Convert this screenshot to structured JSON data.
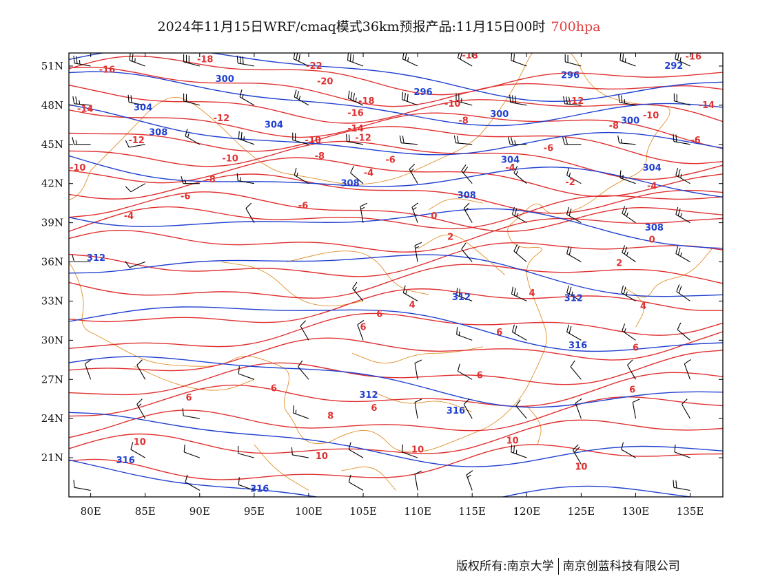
{
  "title": {
    "main": "2024年11月15日WRF/cmaq模式36km预报产品:11月15日00时",
    "level": "700hpa",
    "level_color": "#e04040"
  },
  "map": {
    "lon_range": [
      78,
      138
    ],
    "lat_range": [
      18,
      52
    ],
    "lon_ticks": [
      "80E",
      "85E",
      "90E",
      "95E",
      "100E",
      "105E",
      "110E",
      "115E",
      "120E",
      "125E",
      "130E",
      "135E"
    ],
    "lat_ticks": [
      "51N",
      "48N",
      "45N",
      "42N",
      "39N",
      "36N",
      "33N",
      "30N",
      "27N",
      "24N",
      "21N"
    ],
    "temperature_color": "#e03030",
    "height_color": "#2040d0",
    "boundary_color": "#e0902a",
    "wind_barb_color": "#000000",
    "temperature_labels": [
      {
        "text": "-16",
        "lon": 81.5,
        "lat": 50.7
      },
      {
        "text": "-18",
        "lon": 90.5,
        "lat": 51.5
      },
      {
        "text": "-22",
        "lon": 100.5,
        "lat": 51.0
      },
      {
        "text": "-20",
        "lon": 101.5,
        "lat": 49.8
      },
      {
        "text": "-18",
        "lon": 105.3,
        "lat": 48.3
      },
      {
        "text": "-16",
        "lon": 104.3,
        "lat": 47.4
      },
      {
        "text": "-14",
        "lon": 104.3,
        "lat": 46.2
      },
      {
        "text": "-12",
        "lon": 105.0,
        "lat": 45.5
      },
      {
        "text": "-18",
        "lon": 114.8,
        "lat": 51.8
      },
      {
        "text": "-16",
        "lon": 135.3,
        "lat": 51.7
      },
      {
        "text": "-14",
        "lon": 79.5,
        "lat": 47.7
      },
      {
        "text": "-12",
        "lon": 84.2,
        "lat": 45.3
      },
      {
        "text": "-12",
        "lon": 92.0,
        "lat": 47.0
      },
      {
        "text": "-10",
        "lon": 78.8,
        "lat": 43.2
      },
      {
        "text": "-10",
        "lon": 100.4,
        "lat": 45.3
      },
      {
        "text": "-10",
        "lon": 92.8,
        "lat": 43.9
      },
      {
        "text": "-14",
        "lon": 136.5,
        "lat": 48.0
      },
      {
        "text": "-12",
        "lon": 124.5,
        "lat": 48.3
      },
      {
        "text": "-10",
        "lon": 113.2,
        "lat": 48.1
      },
      {
        "text": "-10",
        "lon": 131.4,
        "lat": 47.2
      },
      {
        "text": "-8",
        "lon": 114.2,
        "lat": 46.8
      },
      {
        "text": "-8",
        "lon": 128.0,
        "lat": 46.4
      },
      {
        "text": "-8",
        "lon": 101.0,
        "lat": 44.1
      },
      {
        "text": "-6",
        "lon": 107.5,
        "lat": 43.8
      },
      {
        "text": "-6",
        "lon": 122.0,
        "lat": 44.7
      },
      {
        "text": "-6",
        "lon": 135.5,
        "lat": 45.3
      },
      {
        "text": "-8",
        "lon": 91.0,
        "lat": 42.3
      },
      {
        "text": "-6",
        "lon": 88.7,
        "lat": 41.0
      },
      {
        "text": "-6",
        "lon": 99.5,
        "lat": 40.3
      },
      {
        "text": "-4",
        "lon": 83.5,
        "lat": 39.5
      },
      {
        "text": "-4",
        "lon": 105.5,
        "lat": 42.8
      },
      {
        "text": "-4",
        "lon": 118.5,
        "lat": 43.2
      },
      {
        "text": "-2",
        "lon": 124.0,
        "lat": 42.1
      },
      {
        "text": "-4",
        "lon": 131.5,
        "lat": 41.8
      },
      {
        "text": "0",
        "lon": 111.5,
        "lat": 39.5
      },
      {
        "text": "2",
        "lon": 113.0,
        "lat": 37.9
      },
      {
        "text": "0",
        "lon": 131.5,
        "lat": 37.7
      },
      {
        "text": "2",
        "lon": 128.5,
        "lat": 35.9
      },
      {
        "text": "4",
        "lon": 109.5,
        "lat": 32.7
      },
      {
        "text": "4",
        "lon": 120.5,
        "lat": 33.6
      },
      {
        "text": "4",
        "lon": 130.7,
        "lat": 32.6
      },
      {
        "text": "6",
        "lon": 106.5,
        "lat": 32.0
      },
      {
        "text": "6",
        "lon": 105.0,
        "lat": 31.0
      },
      {
        "text": "6",
        "lon": 117.5,
        "lat": 30.6
      },
      {
        "text": "6",
        "lon": 130.0,
        "lat": 29.4
      },
      {
        "text": "6",
        "lon": 115.7,
        "lat": 27.3
      },
      {
        "text": "6",
        "lon": 89.0,
        "lat": 25.6
      },
      {
        "text": "6",
        "lon": 96.8,
        "lat": 26.3
      },
      {
        "text": "6",
        "lon": 106.0,
        "lat": 24.8
      },
      {
        "text": "8",
        "lon": 102.0,
        "lat": 24.2
      },
      {
        "text": "10",
        "lon": 84.5,
        "lat": 22.2
      },
      {
        "text": "10",
        "lon": 101.2,
        "lat": 21.1
      },
      {
        "text": "10",
        "lon": 110.0,
        "lat": 21.6
      },
      {
        "text": "10",
        "lon": 118.7,
        "lat": 22.3
      },
      {
        "text": "10",
        "lon": 125.0,
        "lat": 20.3
      },
      {
        "text": "6",
        "lon": 129.7,
        "lat": 26.2
      }
    ],
    "height_labels": [
      {
        "text": "304",
        "lon": 84.8,
        "lat": 47.8
      },
      {
        "text": "300",
        "lon": 92.3,
        "lat": 50.0
      },
      {
        "text": "308",
        "lon": 86.2,
        "lat": 45.9
      },
      {
        "text": "304",
        "lon": 96.8,
        "lat": 46.5
      },
      {
        "text": "296",
        "lon": 110.5,
        "lat": 49.0
      },
      {
        "text": "296",
        "lon": 124.0,
        "lat": 50.3
      },
      {
        "text": "292",
        "lon": 133.5,
        "lat": 51.0
      },
      {
        "text": "300",
        "lon": 117.5,
        "lat": 47.3
      },
      {
        "text": "300",
        "lon": 129.5,
        "lat": 46.8
      },
      {
        "text": "304",
        "lon": 118.5,
        "lat": 43.8
      },
      {
        "text": "304",
        "lon": 131.5,
        "lat": 43.2
      },
      {
        "text": "308",
        "lon": 103.8,
        "lat": 42.0
      },
      {
        "text": "308",
        "lon": 114.5,
        "lat": 41.1
      },
      {
        "text": "308",
        "lon": 131.7,
        "lat": 38.6
      },
      {
        "text": "312",
        "lon": 80.5,
        "lat": 36.3
      },
      {
        "text": "312",
        "lon": 114.0,
        "lat": 33.3
      },
      {
        "text": "312",
        "lon": 124.3,
        "lat": 33.2
      },
      {
        "text": "316",
        "lon": 124.7,
        "lat": 29.6
      },
      {
        "text": "312",
        "lon": 105.5,
        "lat": 25.8
      },
      {
        "text": "316",
        "lon": 113.5,
        "lat": 24.6
      },
      {
        "text": "316",
        "lon": 83.2,
        "lat": 20.8
      },
      {
        "text": "316",
        "lon": 95.5,
        "lat": 18.6
      }
    ],
    "wind_barbs": [
      {
        "lon": 80,
        "lat": 51,
        "dir": 280,
        "spd": 25
      },
      {
        "lon": 85,
        "lat": 51,
        "dir": 290,
        "spd": 25
      },
      {
        "lon": 90,
        "lat": 51,
        "dir": 285,
        "spd": 30
      },
      {
        "lon": 95,
        "lat": 51,
        "dir": 280,
        "spd": 30
      },
      {
        "lon": 100,
        "lat": 51,
        "dir": 295,
        "spd": 30
      },
      {
        "lon": 105,
        "lat": 51,
        "dir": 290,
        "spd": 30
      },
      {
        "lon": 110,
        "lat": 51,
        "dir": 295,
        "spd": 25
      },
      {
        "lon": 115,
        "lat": 51,
        "dir": 300,
        "spd": 20
      },
      {
        "lon": 120,
        "lat": 51,
        "dir": 290,
        "spd": 20
      },
      {
        "lon": 125,
        "lat": 51,
        "dir": 285,
        "spd": 20
      },
      {
        "lon": 130,
        "lat": 51,
        "dir": 290,
        "spd": 25
      },
      {
        "lon": 135,
        "lat": 51,
        "dir": 295,
        "spd": 25
      },
      {
        "lon": 80,
        "lat": 48,
        "dir": 275,
        "spd": 25
      },
      {
        "lon": 85,
        "lat": 48,
        "dir": 280,
        "spd": 20
      },
      {
        "lon": 90,
        "lat": 48,
        "dir": 285,
        "spd": 20
      },
      {
        "lon": 95,
        "lat": 48,
        "dir": 300,
        "spd": 15
      },
      {
        "lon": 100,
        "lat": 48,
        "dir": 300,
        "spd": 25
      },
      {
        "lon": 105,
        "lat": 48,
        "dir": 295,
        "spd": 35
      },
      {
        "lon": 110,
        "lat": 48,
        "dir": 290,
        "spd": 30
      },
      {
        "lon": 115,
        "lat": 48,
        "dir": 285,
        "spd": 25
      },
      {
        "lon": 120,
        "lat": 48,
        "dir": 280,
        "spd": 30
      },
      {
        "lon": 125,
        "lat": 48,
        "dir": 275,
        "spd": 30
      },
      {
        "lon": 130,
        "lat": 48,
        "dir": 280,
        "spd": 25
      },
      {
        "lon": 135,
        "lat": 48,
        "dir": 285,
        "spd": 20
      },
      {
        "lon": 80,
        "lat": 45,
        "dir": 270,
        "spd": 15
      },
      {
        "lon": 85,
        "lat": 45,
        "dir": 260,
        "spd": 10
      },
      {
        "lon": 90,
        "lat": 45,
        "dir": 300,
        "spd": 15
      },
      {
        "lon": 95,
        "lat": 45,
        "dir": 290,
        "spd": 25
      },
      {
        "lon": 100,
        "lat": 45,
        "dir": 285,
        "spd": 20
      },
      {
        "lon": 105,
        "lat": 45,
        "dir": 280,
        "spd": 20
      },
      {
        "lon": 110,
        "lat": 45,
        "dir": 275,
        "spd": 20
      },
      {
        "lon": 115,
        "lat": 45,
        "dir": 275,
        "spd": 20
      },
      {
        "lon": 120,
        "lat": 45,
        "dir": 270,
        "spd": 25
      },
      {
        "lon": 125,
        "lat": 45,
        "dir": 270,
        "spd": 20
      },
      {
        "lon": 130,
        "lat": 45,
        "dir": 275,
        "spd": 15
      },
      {
        "lon": 135,
        "lat": 45,
        "dir": 280,
        "spd": 20
      },
      {
        "lon": 85,
        "lat": 42,
        "dir": 240,
        "spd": 10
      },
      {
        "lon": 90,
        "lat": 42,
        "dir": 270,
        "spd": 15
      },
      {
        "lon": 95,
        "lat": 42,
        "dir": 280,
        "spd": 15
      },
      {
        "lon": 100,
        "lat": 42,
        "dir": 300,
        "spd": 15
      },
      {
        "lon": 105,
        "lat": 42,
        "dir": 310,
        "spd": 10
      },
      {
        "lon": 110,
        "lat": 42,
        "dir": 330,
        "spd": 15
      },
      {
        "lon": 115,
        "lat": 42,
        "dir": 320,
        "spd": 20
      },
      {
        "lon": 120,
        "lat": 42,
        "dir": 310,
        "spd": 15
      },
      {
        "lon": 125,
        "lat": 42,
        "dir": 300,
        "spd": 15
      },
      {
        "lon": 130,
        "lat": 42,
        "dir": 290,
        "spd": 15
      },
      {
        "lon": 135,
        "lat": 42,
        "dir": 300,
        "spd": 25
      },
      {
        "lon": 95,
        "lat": 39,
        "dir": 330,
        "spd": 10
      },
      {
        "lon": 105,
        "lat": 39,
        "dir": 350,
        "spd": 15
      },
      {
        "lon": 110,
        "lat": 39,
        "dir": 340,
        "spd": 15
      },
      {
        "lon": 115,
        "lat": 39,
        "dir": 330,
        "spd": 15
      },
      {
        "lon": 120,
        "lat": 39,
        "dir": 300,
        "spd": 25
      },
      {
        "lon": 125,
        "lat": 39,
        "dir": 300,
        "spd": 20
      },
      {
        "lon": 130,
        "lat": 39,
        "dir": 305,
        "spd": 25
      },
      {
        "lon": 135,
        "lat": 39,
        "dir": 300,
        "spd": 25
      },
      {
        "lon": 80,
        "lat": 36,
        "dir": 270,
        "spd": 10
      },
      {
        "lon": 85,
        "lat": 36,
        "dir": 250,
        "spd": 10
      },
      {
        "lon": 110,
        "lat": 36,
        "dir": 350,
        "spd": 15
      },
      {
        "lon": 115,
        "lat": 36,
        "dir": 320,
        "spd": 10
      },
      {
        "lon": 120,
        "lat": 36,
        "dir": 310,
        "spd": 20
      },
      {
        "lon": 125,
        "lat": 36,
        "dir": 300,
        "spd": 20
      },
      {
        "lon": 130,
        "lat": 36,
        "dir": 305,
        "spd": 25
      },
      {
        "lon": 135,
        "lat": 36,
        "dir": 300,
        "spd": 25
      },
      {
        "lon": 105,
        "lat": 33,
        "dir": 320,
        "spd": 15
      },
      {
        "lon": 110,
        "lat": 33,
        "dir": 300,
        "spd": 15
      },
      {
        "lon": 115,
        "lat": 33,
        "dir": 290,
        "spd": 20
      },
      {
        "lon": 120,
        "lat": 33,
        "dir": 295,
        "spd": 25
      },
      {
        "lon": 125,
        "lat": 33,
        "dir": 300,
        "spd": 25
      },
      {
        "lon": 130,
        "lat": 33,
        "dir": 300,
        "spd": 25
      },
      {
        "lon": 135,
        "lat": 33,
        "dir": 305,
        "spd": 20
      },
      {
        "lon": 100,
        "lat": 30,
        "dir": 330,
        "spd": 10
      },
      {
        "lon": 105,
        "lat": 30,
        "dir": 340,
        "spd": 10
      },
      {
        "lon": 115,
        "lat": 30,
        "dir": 290,
        "spd": 15
      },
      {
        "lon": 120,
        "lat": 30,
        "dir": 300,
        "spd": 20
      },
      {
        "lon": 125,
        "lat": 30,
        "dir": 300,
        "spd": 20
      },
      {
        "lon": 130,
        "lat": 30,
        "dir": 305,
        "spd": 15
      },
      {
        "lon": 135,
        "lat": 30,
        "dir": 310,
        "spd": 10
      },
      {
        "lon": 80,
        "lat": 27,
        "dir": 340,
        "spd": 10
      },
      {
        "lon": 85,
        "lat": 27,
        "dir": 330,
        "spd": 10
      },
      {
        "lon": 95,
        "lat": 27,
        "dir": 290,
        "spd": 10
      },
      {
        "lon": 100,
        "lat": 27,
        "dir": 320,
        "spd": 10
      },
      {
        "lon": 110,
        "lat": 27,
        "dir": 350,
        "spd": 10
      },
      {
        "lon": 115,
        "lat": 27,
        "dir": 300,
        "spd": 10
      },
      {
        "lon": 125,
        "lat": 27,
        "dir": 320,
        "spd": 10
      },
      {
        "lon": 130,
        "lat": 27,
        "dir": 330,
        "spd": 10
      },
      {
        "lon": 135,
        "lat": 27,
        "dir": 340,
        "spd": 10
      },
      {
        "lon": 85,
        "lat": 24,
        "dir": 330,
        "spd": 15
      },
      {
        "lon": 90,
        "lat": 24,
        "dir": 280,
        "spd": 10
      },
      {
        "lon": 100,
        "lat": 24,
        "dir": 290,
        "spd": 15
      },
      {
        "lon": 110,
        "lat": 24,
        "dir": 350,
        "spd": 10
      },
      {
        "lon": 115,
        "lat": 24,
        "dir": 330,
        "spd": 10
      },
      {
        "lon": 120,
        "lat": 24,
        "dir": 320,
        "spd": 10
      },
      {
        "lon": 125,
        "lat": 24,
        "dir": 340,
        "spd": 10
      },
      {
        "lon": 130,
        "lat": 24,
        "dir": 350,
        "spd": 10
      },
      {
        "lon": 135,
        "lat": 24,
        "dir": 330,
        "spd": 10
      },
      {
        "lon": 85,
        "lat": 21,
        "dir": 300,
        "spd": 10
      },
      {
        "lon": 90,
        "lat": 21,
        "dir": 290,
        "spd": 10
      },
      {
        "lon": 95,
        "lat": 21,
        "dir": 285,
        "spd": 10
      },
      {
        "lon": 100,
        "lat": 21,
        "dir": 280,
        "spd": 10
      },
      {
        "lon": 105,
        "lat": 21,
        "dir": 300,
        "spd": 10
      },
      {
        "lon": 110,
        "lat": 21,
        "dir": 290,
        "spd": 10
      },
      {
        "lon": 120,
        "lat": 21,
        "dir": 290,
        "spd": 25
      },
      {
        "lon": 125,
        "lat": 20.5,
        "dir": 330,
        "spd": 20
      },
      {
        "lon": 130,
        "lat": 21,
        "dir": 300,
        "spd": 10
      },
      {
        "lon": 135,
        "lat": 21,
        "dir": 290,
        "spd": 10
      },
      {
        "lon": 80,
        "lat": 18.5,
        "dir": 280,
        "spd": 10
      },
      {
        "lon": 90,
        "lat": 18.5,
        "dir": 300,
        "spd": 10
      },
      {
        "lon": 95,
        "lat": 18.5,
        "dir": 290,
        "spd": 10
      },
      {
        "lon": 105,
        "lat": 18.5,
        "dir": 300,
        "spd": 10
      },
      {
        "lon": 110,
        "lat": 18.5,
        "dir": 350,
        "spd": 10
      },
      {
        "lon": 115,
        "lat": 18.5,
        "dir": 340,
        "spd": 15
      },
      {
        "lon": 135,
        "lat": 18.5,
        "dir": 280,
        "spd": 20
      }
    ]
  },
  "footer": {
    "left": "版权所有:南京大学",
    "right": "南京创蓝科技有限公司"
  }
}
